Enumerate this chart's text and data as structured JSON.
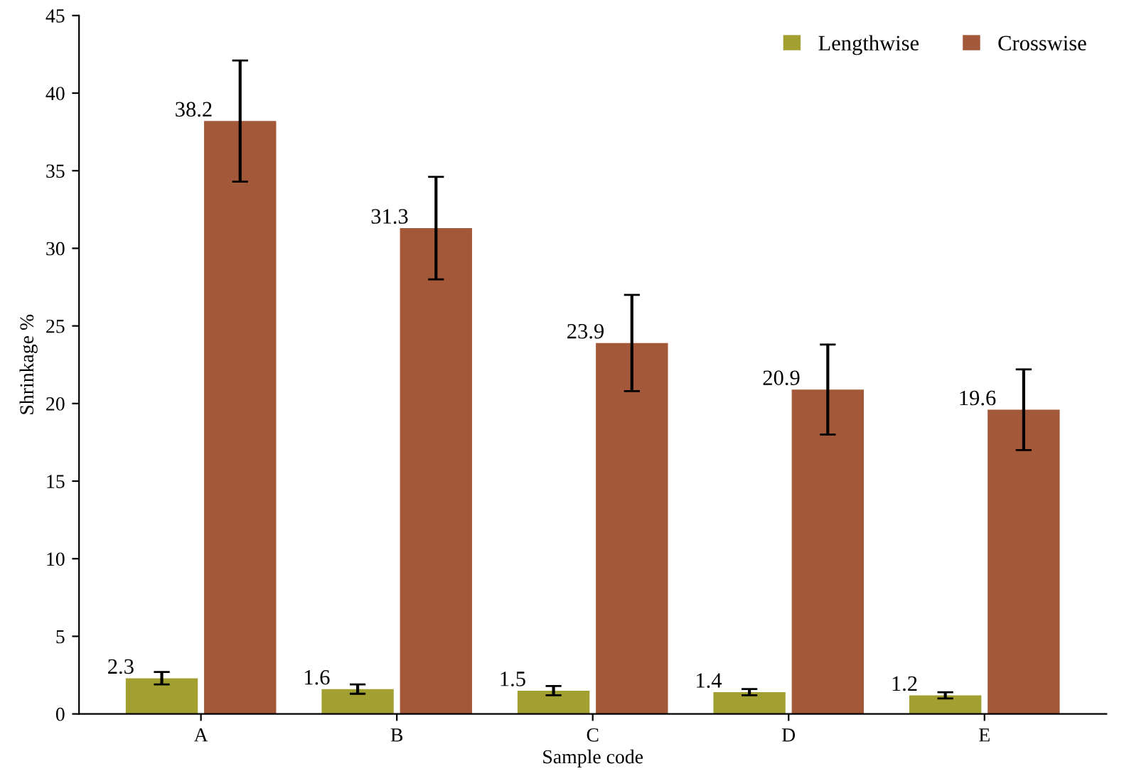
{
  "chart_data": {
    "type": "bar",
    "xlabel": "Sample code",
    "ylabel": "Shrinkage %",
    "categories": [
      "A",
      "B",
      "C",
      "D",
      "E"
    ],
    "series": [
      {
        "name": "Lengthwise",
        "color": "#a3a032",
        "values": [
          2.3,
          1.6,
          1.5,
          1.4,
          1.2
        ],
        "errors": [
          0.4,
          0.3,
          0.3,
          0.2,
          0.2
        ]
      },
      {
        "name": "Crosswise",
        "color": "#a4583a",
        "values": [
          38.2,
          31.3,
          23.9,
          20.9,
          19.6
        ],
        "errors": [
          3.9,
          3.3,
          3.1,
          2.9,
          2.6
        ]
      }
    ],
    "ylim": [
      0,
      45
    ],
    "yticks": [
      0,
      5,
      10,
      15,
      20,
      25,
      30,
      35,
      40,
      45
    ],
    "data_labels": true,
    "legend": "top right",
    "grid": false
  }
}
